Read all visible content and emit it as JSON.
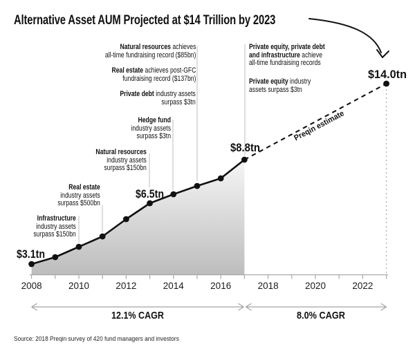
{
  "title": "Alternative Asset AUM Projected at $14 Trillion by 2023",
  "source_note": "Source: 2018 Preqin survey of 420 fund managers and investors",
  "projection_label": "Preqin estimate",
  "value_labels": [
    {
      "year": 2008,
      "text": "$3.1tn"
    },
    {
      "year": 2013,
      "text": "$6.5tn"
    },
    {
      "year": 2017,
      "text": "$8.8tn"
    },
    {
      "year": 2023,
      "text": "$14.0tn"
    }
  ],
  "annotations": {
    "left": [
      {
        "target_year": 2015,
        "lines": [
          {
            "b": "Natural resources",
            "r": " achieves"
          },
          {
            "r": "all-time fundraising record ($85bn)"
          }
        ]
      },
      {
        "target_year": 2015,
        "lines": [
          {
            "b": "Real estate",
            "r": " achieves post-GFC"
          },
          {
            "r": "fundraising record ($137bn)"
          }
        ]
      },
      {
        "target_year": 2015,
        "lines": [
          {
            "b": "Private debt",
            "r": " industry assets"
          },
          {
            "r": "surpass $3tn"
          }
        ]
      },
      {
        "target_year": 2014,
        "lines": [
          {
            "b": "Hedge fund"
          },
          {
            "r": "industry assets"
          },
          {
            "r": "surpass $3tn"
          }
        ]
      },
      {
        "target_year": 2013,
        "lines": [
          {
            "b": "Natural resources"
          },
          {
            "r": "industry assets"
          },
          {
            "r": "surpass $150bn"
          }
        ]
      },
      {
        "target_year": 2011,
        "lines": [
          {
            "b": "Real estate"
          },
          {
            "r": "industry assets"
          },
          {
            "r": "surpass $500bn"
          }
        ]
      },
      {
        "target_year": 2010,
        "lines": [
          {
            "b": "Infrastructure"
          },
          {
            "r": "industry assets"
          },
          {
            "r": "surpass $150bn"
          }
        ]
      }
    ],
    "right": [
      {
        "target_year": 2017,
        "lines": [
          {
            "b": "Private equity, private debt"
          },
          {
            "b": "and infrastructure",
            "r": " achieve"
          },
          {
            "r": "all-time fundraising records"
          }
        ]
      },
      {
        "target_year": 2017,
        "lines": [
          {
            "b": "Private equity",
            "r": " industry"
          },
          {
            "r": "assets surpass $3tn"
          }
        ]
      }
    ]
  },
  "x_axis": {
    "tick_years": [
      2008,
      2009,
      2010,
      2011,
      2012,
      2013,
      2014,
      2015,
      2016,
      2017,
      2018,
      2019,
      2020,
      2021,
      2022,
      2023
    ],
    "label_years": [
      2008,
      2010,
      2012,
      2014,
      2016,
      2018,
      2020,
      2022
    ]
  },
  "cagr_segments": [
    {
      "label": "12.1% CAGR",
      "from_year": 2008,
      "to_year": 2017
    },
    {
      "label": "8.0% CAGR",
      "from_year": 2017,
      "to_year": 2023
    }
  ],
  "chart_data": {
    "type": "line",
    "title": "Alternative Asset AUM Projected at $14 Trillion by 2023",
    "y_unit": "USD trillion",
    "xlim": [
      2008,
      2023
    ],
    "grid": false,
    "series": [
      {
        "name": "Alternative asset AUM (historical)",
        "style": "solid-with-area",
        "x": [
          2008,
          2009,
          2010,
          2011,
          2012,
          2013,
          2014,
          2015,
          2016,
          2017
        ],
        "values": [
          3.1,
          3.5,
          4.1,
          4.6,
          5.6,
          6.5,
          7.0,
          7.4,
          7.8,
          8.8
        ]
      },
      {
        "name": "Preqin estimate (projection)",
        "style": "dashed",
        "x": [
          2017,
          2023
        ],
        "values": [
          8.8,
          14.0
        ]
      }
    ],
    "labeled_points": [
      {
        "year": 2008,
        "value_tn": 3.1
      },
      {
        "year": 2013,
        "value_tn": 6.5
      },
      {
        "year": 2017,
        "value_tn": 8.8
      },
      {
        "year": 2023,
        "value_tn": 14.0
      }
    ],
    "cagr": [
      {
        "range": [
          2008,
          2017
        ],
        "value": "12.1%"
      },
      {
        "range": [
          2017,
          2023
        ],
        "value": "8.0%"
      }
    ]
  },
  "colors": {
    "ink": "#111111",
    "leader_gray": "#c9c9c9",
    "axis_gray": "#a8a8a8",
    "arrow_gray": "#a3a3a3",
    "area_top": "#f6f6f6",
    "area_bottom": "#bdbdbd",
    "guide_dash_gray": "#b5b5b5"
  }
}
